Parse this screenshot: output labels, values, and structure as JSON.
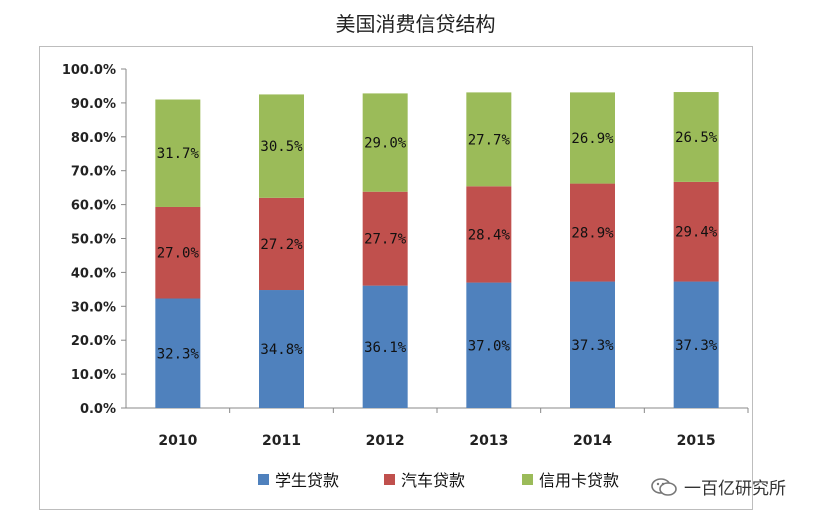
{
  "title": "美国消费信贷结构",
  "watermark": "一百亿研究所",
  "chart_data": {
    "type": "bar",
    "stacked": true,
    "categories": [
      "2010",
      "2011",
      "2012",
      "2013",
      "2014",
      "2015"
    ],
    "series": [
      {
        "name": "学生贷款",
        "color": "#4f81bd",
        "values": [
          32.3,
          34.8,
          36.1,
          37.0,
          37.3,
          37.3
        ],
        "labels": [
          "32.3%",
          "34.8%",
          "36.1%",
          "37.0%",
          "37.3%",
          "37.3%"
        ]
      },
      {
        "name": "汽车贷款",
        "color": "#c0504d",
        "values": [
          27.0,
          27.2,
          27.7,
          28.4,
          28.9,
          29.4
        ],
        "labels": [
          "27.0%",
          "27.2%",
          "27.7%",
          "28.4%",
          "28.9%",
          "29.4%"
        ]
      },
      {
        "name": "信用卡贷款",
        "color": "#9bbb59",
        "values": [
          31.7,
          30.5,
          29.0,
          27.7,
          26.9,
          26.5
        ],
        "labels": [
          "31.7%",
          "30.5%",
          "29.0%",
          "27.7%",
          "26.9%",
          "26.5%"
        ]
      }
    ],
    "ylim": [
      0,
      100
    ],
    "yticks": [
      "0.0%",
      "10.0%",
      "20.0%",
      "30.0%",
      "40.0%",
      "50.0%",
      "60.0%",
      "70.0%",
      "80.0%",
      "90.0%",
      "100.0%"
    ],
    "grid": false,
    "legend": "bottom"
  }
}
